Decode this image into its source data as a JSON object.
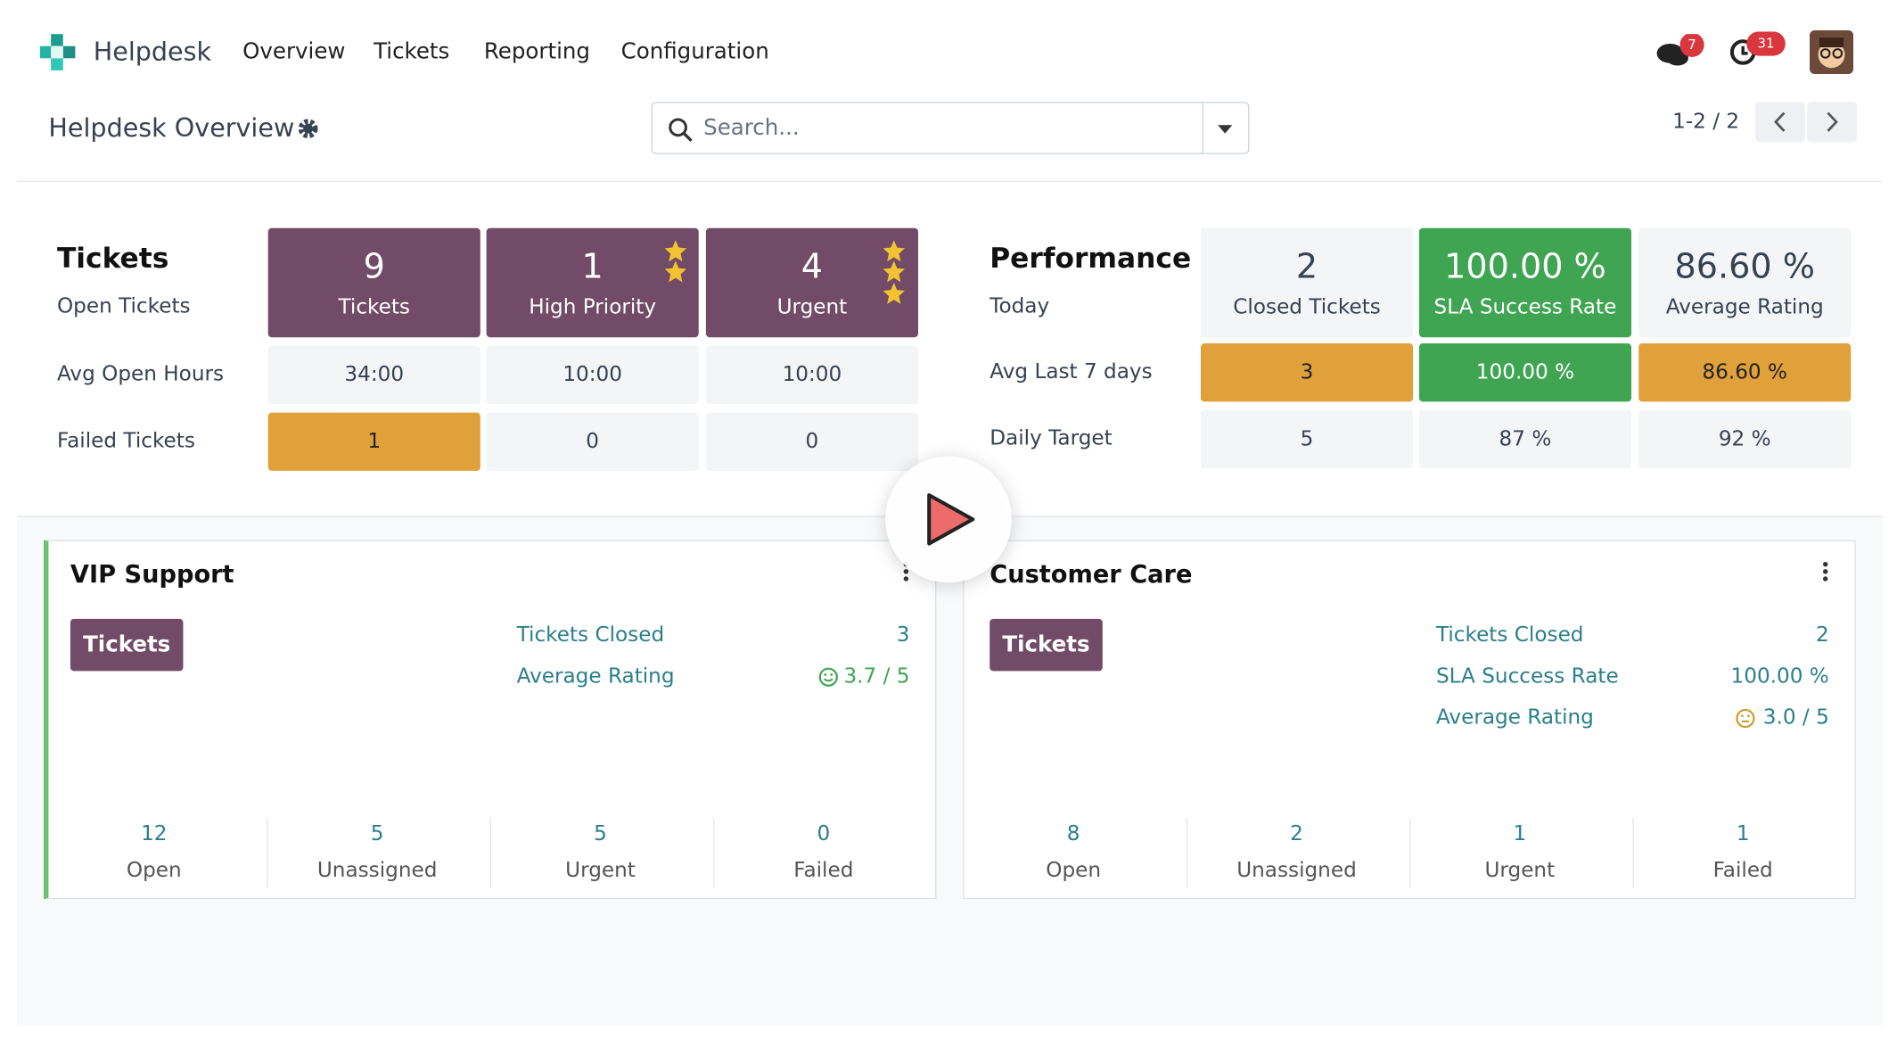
{
  "nav": {
    "app": "Helpdesk",
    "menu": [
      "Overview",
      "Tickets",
      "Reporting",
      "Configuration"
    ],
    "messages_badge": "7",
    "activities_badge": "31"
  },
  "control": {
    "breadcrumb": "Helpdesk Overview",
    "search_placeholder": "Search...",
    "pager": "1-2 / 2"
  },
  "tickets": {
    "title": "Tickets",
    "subtitle": "Open Tickets",
    "cards": [
      {
        "value": "9",
        "label": "Tickets"
      },
      {
        "value": "1",
        "label": "High Priority"
      },
      {
        "value": "4",
        "label": "Urgent"
      }
    ],
    "rows": [
      {
        "label": "Avg Open Hours",
        "values": [
          "34:00",
          "10:00",
          "10:00"
        ]
      },
      {
        "label": "Failed Tickets",
        "values": [
          "1",
          "0",
          "0"
        ]
      }
    ]
  },
  "performance": {
    "title": "Performance",
    "subtitle": "Today",
    "cards": [
      {
        "value": "2",
        "label": "Closed Tickets"
      },
      {
        "value": "100.00 %",
        "label": "SLA Success Rate"
      },
      {
        "value": "86.60 %",
        "label": "Average Rating"
      }
    ],
    "rows": [
      {
        "label": "Avg Last 7 days",
        "values": [
          "3",
          "100.00 %",
          "86.60 %"
        ]
      },
      {
        "label": "Daily Target",
        "values": [
          "5",
          "87 %",
          "92 %"
        ]
      }
    ]
  },
  "teams": [
    {
      "name": "VIP Support",
      "button": "Tickets",
      "stats": [
        {
          "label": "Tickets Closed",
          "value": "3"
        },
        {
          "label": "Average Rating",
          "value": "3.7 / 5"
        }
      ],
      "counts": [
        {
          "value": "12",
          "label": "Open"
        },
        {
          "value": "5",
          "label": "Unassigned"
        },
        {
          "value": "5",
          "label": "Urgent"
        },
        {
          "value": "0",
          "label": "Failed"
        }
      ]
    },
    {
      "name": "Customer Care",
      "button": "Tickets",
      "stats": [
        {
          "label": "Tickets Closed",
          "value": "2"
        },
        {
          "label": "SLA Success Rate",
          "value": "100.00 %"
        },
        {
          "label": "Average Rating",
          "value": "3.0 / 5"
        }
      ],
      "counts": [
        {
          "value": "8",
          "label": "Open"
        },
        {
          "value": "2",
          "label": "Unassigned"
        },
        {
          "value": "1",
          "label": "Urgent"
        },
        {
          "value": "1",
          "label": "Failed"
        }
      ]
    }
  ]
}
